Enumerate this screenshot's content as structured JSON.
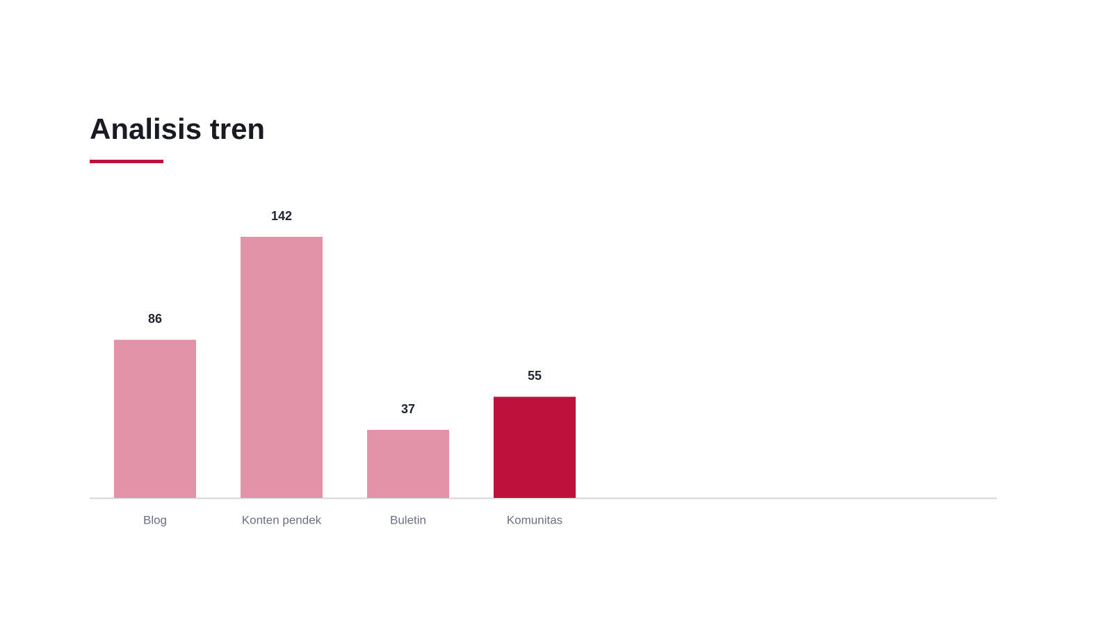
{
  "chart_data": {
    "type": "bar",
    "title": "Analisis tren",
    "categories": [
      "Blog",
      "Konten pendek",
      "Buletin",
      "Komunitas"
    ],
    "values": [
      86,
      142,
      37,
      55
    ],
    "colors": [
      "#e293a7",
      "#e293a7",
      "#e293a7",
      "#be123c"
    ]
  }
}
